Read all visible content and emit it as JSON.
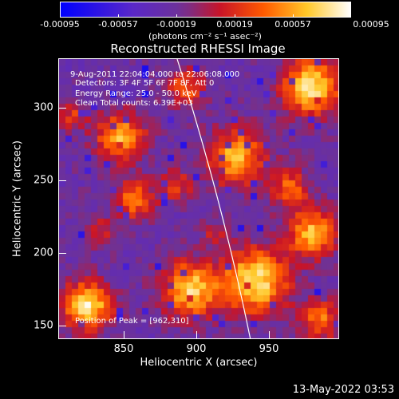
{
  "colorbar": {
    "tick_labels": [
      "-0.00095",
      "-0.00057",
      "-0.00019",
      "0.00019",
      "0.00057",
      "0.00095"
    ],
    "units": "(photons cm⁻² s⁻¹ asec⁻²)"
  },
  "title": "Reconstructed RHESSI Image",
  "annotations": {
    "time_range": "9-Aug-2011 22:04:04.000 to 22:06:08.000",
    "detectors": "Detectors: 3F 4F 5F 6F 7F 8F, Att 0",
    "energy_range": "Energy Range: 25.0 - 50.0 keV",
    "method_counts": "Clean     Total counts: 6.39E+03",
    "peak": "Position of Peak = [962,310]"
  },
  "axes": {
    "xlabel": "Heliocentric X (arcsec)",
    "ylabel": "Heliocentric Y (arcsec)",
    "xticks": [
      "850",
      "900",
      "950"
    ],
    "yticks": [
      "300",
      "250",
      "200",
      "150"
    ]
  },
  "datestamp": "13-May-2022 03:53",
  "colors": {
    "background": "#000000",
    "limb_line": "#ffffff"
  }
}
